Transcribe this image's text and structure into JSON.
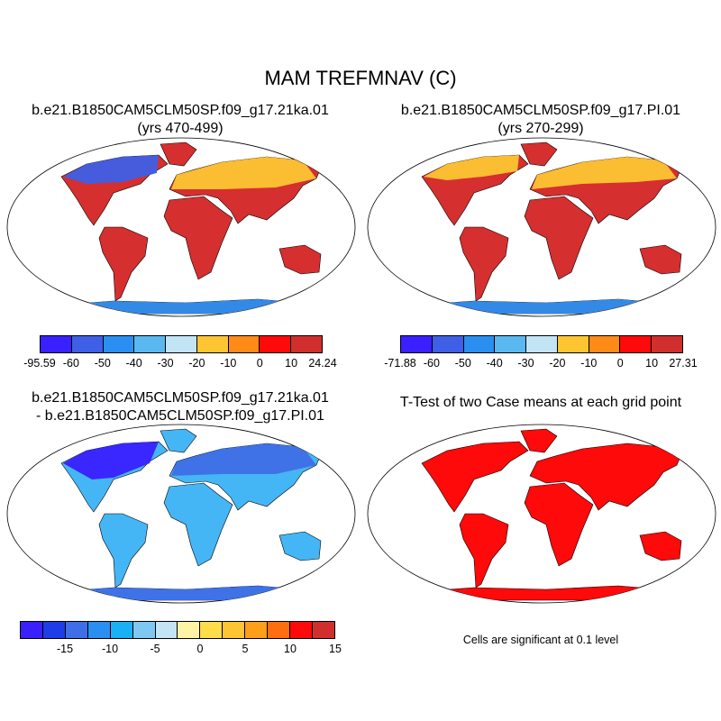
{
  "title": "MAM TREFMNAV (C)",
  "panels": [
    {
      "title_line1": "b.e21.B1850CAM5CLM50SP.f09_g17.21ka.01",
      "title_line2": "(yrs 470-499)",
      "land_color": "#d62f2f",
      "colorbar": {
        "colors": [
          "#3a1fff",
          "#3f5fe6",
          "#2a8ff0",
          "#5ab8f0",
          "#c2e4f5",
          "#fdc531",
          "#fe8a17",
          "#ff0a0a",
          "#d12e2e"
        ],
        "labels": [
          "-95.59",
          "-60",
          "-50",
          "-40",
          "-30",
          "-20",
          "-10",
          "0",
          "10",
          "24.24"
        ]
      }
    },
    {
      "title_line1": "b.e21.B1850CAM5CLM50SP.f09_g17.PI.01",
      "title_line2": "(yrs 270-299)",
      "land_color": "#d62f2f",
      "colorbar": {
        "colors": [
          "#3a1fff",
          "#3f5fe6",
          "#2a8ff0",
          "#5ab8f0",
          "#c2e4f5",
          "#fdc531",
          "#fe8a17",
          "#ff0a0a",
          "#d12e2e"
        ],
        "labels": [
          "-71.88",
          "-60",
          "-50",
          "-40",
          "-30",
          "-20",
          "-10",
          "0",
          "10",
          "27.31"
        ]
      }
    },
    {
      "title_line1": "b.e21.B1850CAM5CLM50SP.f09_g17.21ka.01",
      "title_line2": "- b.e21.B1850CAM5CLM50SP.f09_g17.PI.01",
      "land_color": "#45b6f5",
      "colorbar": {
        "colors": [
          "#3a1fff",
          "#1e3ce8",
          "#3f6fe6",
          "#2a8ff0",
          "#1ab0f5",
          "#7ec8f2",
          "#c2e4f5",
          "#fff4a6",
          "#fedc4a",
          "#fdc531",
          "#fe9f1a",
          "#fe6e10",
          "#ff0a0a",
          "#d12e2e"
        ],
        "labels": [
          "-15",
          "-10",
          "-5",
          "0",
          "5",
          "10",
          "15"
        ]
      }
    },
    {
      "title_line1": "T-Test of two Case means at each grid point",
      "land_color": "#ff0a0a",
      "note": "Cells are significant at 0.1 level"
    }
  ]
}
